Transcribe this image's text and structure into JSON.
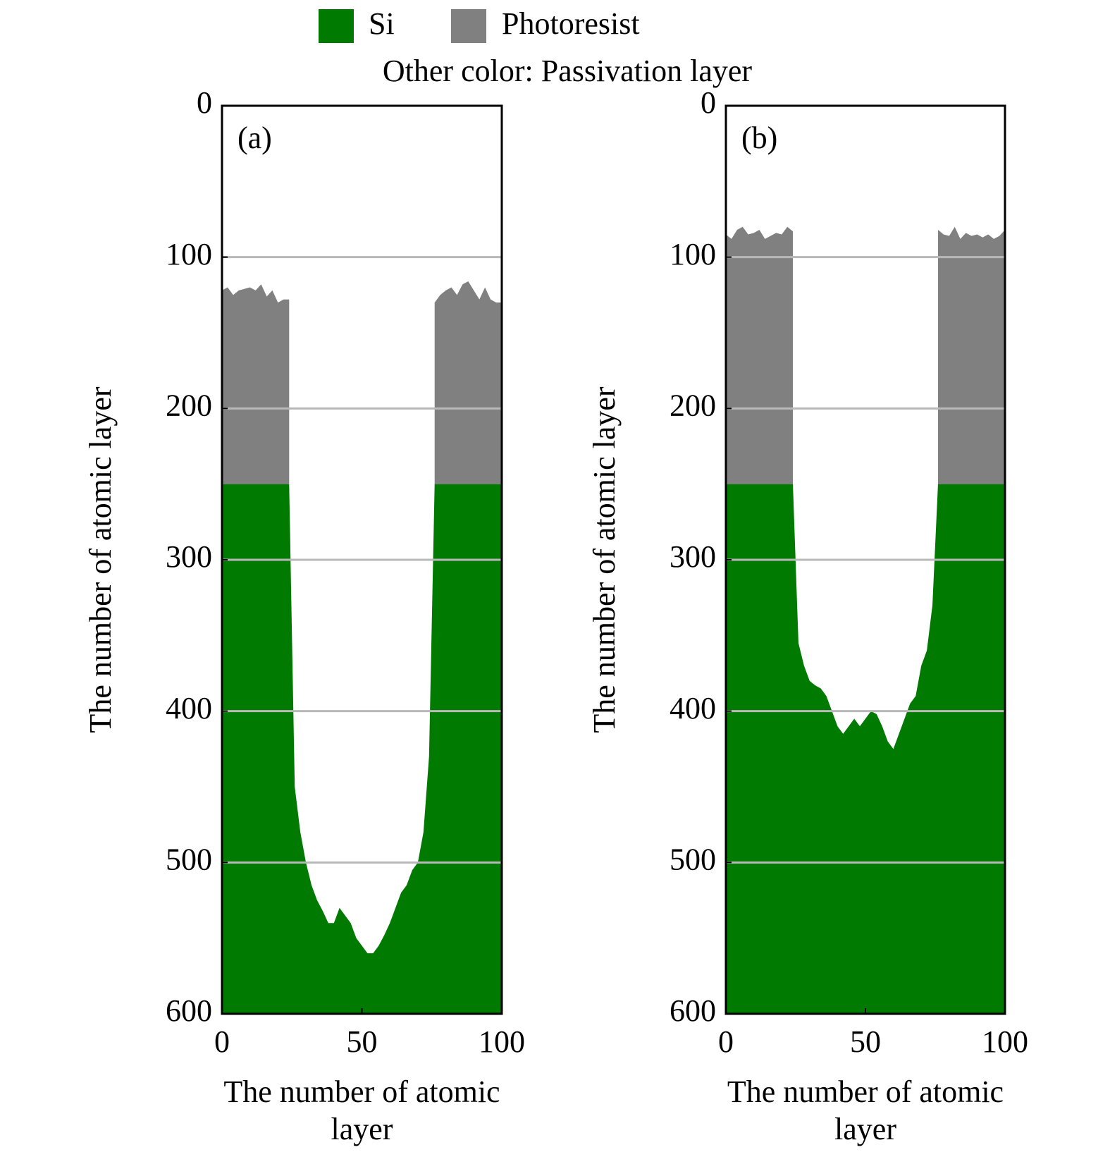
{
  "chart_data": [
    {
      "type": "profile",
      "panel_label": "(a)",
      "note": "Other color: Passivation layer",
      "xlabel": "The number of atomic layer",
      "ylabel": "The number of atomic layer",
      "xlim": [
        0,
        100
      ],
      "ylim": [
        0,
        600
      ],
      "y_inverted": true,
      "xticks": [
        0,
        50,
        100
      ],
      "yticks": [
        0,
        100,
        200,
        300,
        400,
        500,
        600
      ],
      "grid": true,
      "x": [
        0,
        2,
        4,
        6,
        8,
        10,
        12,
        14,
        16,
        18,
        20,
        22,
        24,
        26,
        28,
        30,
        32,
        34,
        36,
        38,
        40,
        42,
        44,
        46,
        48,
        50,
        52,
        54,
        56,
        58,
        60,
        62,
        64,
        66,
        68,
        70,
        72,
        74,
        76,
        78,
        80,
        82,
        84,
        86,
        88,
        90,
        92,
        94,
        96,
        98,
        100
      ],
      "series": [
        {
          "name": "Si",
          "color": "#007a00",
          "values": [
            250,
            250,
            250,
            250,
            250,
            250,
            250,
            250,
            250,
            250,
            250,
            250,
            250,
            450,
            480,
            500,
            515,
            525,
            532,
            540,
            540,
            530,
            535,
            540,
            550,
            555,
            560,
            560,
            555,
            548,
            540,
            530,
            520,
            515,
            505,
            500,
            480,
            430,
            250,
            250,
            250,
            250,
            250,
            250,
            250,
            250,
            250,
            250,
            250,
            250,
            250
          ]
        },
        {
          "name": "Photoresist",
          "color": "#808080",
          "values": [
            122,
            120,
            125,
            122,
            121,
            120,
            122,
            118,
            126,
            122,
            130,
            128,
            128,
            null,
            null,
            null,
            null,
            null,
            null,
            null,
            null,
            null,
            null,
            null,
            null,
            null,
            null,
            null,
            null,
            null,
            null,
            null,
            null,
            null,
            null,
            null,
            null,
            null,
            130,
            125,
            122,
            120,
            125,
            118,
            116,
            122,
            128,
            120,
            128,
            130,
            130
          ]
        }
      ]
    },
    {
      "type": "profile",
      "panel_label": "(b)",
      "xlabel": "The number of atomic layer",
      "ylabel": "The number of atomic layer",
      "xlim": [
        0,
        100
      ],
      "ylim": [
        0,
        600
      ],
      "y_inverted": true,
      "xticks": [
        0,
        50,
        100
      ],
      "yticks": [
        0,
        100,
        200,
        300,
        400,
        500,
        600
      ],
      "grid": true,
      "x": [
        0,
        2,
        4,
        6,
        8,
        10,
        12,
        14,
        16,
        18,
        20,
        22,
        24,
        26,
        28,
        30,
        32,
        34,
        36,
        38,
        40,
        42,
        44,
        46,
        48,
        50,
        52,
        54,
        56,
        58,
        60,
        62,
        64,
        66,
        68,
        70,
        72,
        74,
        76,
        78,
        80,
        82,
        84,
        86,
        88,
        90,
        92,
        94,
        96,
        98,
        100
      ],
      "series": [
        {
          "name": "Si",
          "color": "#007a00",
          "values": [
            250,
            250,
            250,
            250,
            250,
            250,
            250,
            250,
            250,
            250,
            250,
            250,
            250,
            355,
            370,
            380,
            383,
            385,
            390,
            400,
            410,
            415,
            410,
            405,
            410,
            405,
            400,
            402,
            410,
            420,
            425,
            415,
            405,
            395,
            390,
            370,
            360,
            330,
            250,
            250,
            250,
            250,
            250,
            250,
            250,
            250,
            250,
            250,
            250,
            250,
            250
          ]
        },
        {
          "name": "Photoresist",
          "color": "#808080",
          "values": [
            85,
            88,
            82,
            80,
            85,
            84,
            82,
            88,
            86,
            84,
            85,
            80,
            83,
            null,
            null,
            null,
            null,
            null,
            null,
            null,
            null,
            null,
            null,
            null,
            null,
            null,
            null,
            null,
            null,
            null,
            null,
            null,
            null,
            null,
            null,
            null,
            null,
            null,
            82,
            85,
            86,
            80,
            88,
            84,
            86,
            85,
            87,
            85,
            88,
            86,
            82
          ]
        }
      ]
    }
  ]
}
